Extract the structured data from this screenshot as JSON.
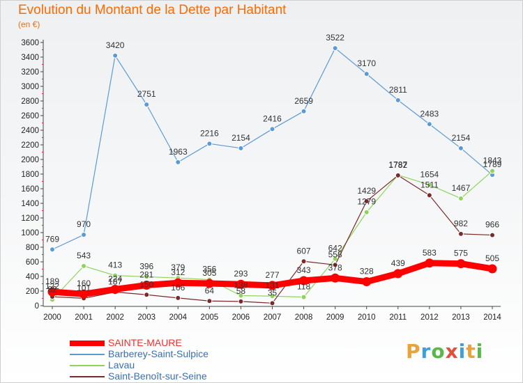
{
  "title": "Evolution du Montant de la Dette par Habitant",
  "unit_label": "(en €)",
  "logo": {
    "text": "Proxiti",
    "colors": [
      "#e8a33a",
      "#3fa0d8",
      "#58b848",
      "#e0503a",
      "#3fa0d8",
      "#e8a33a",
      "#58b848"
    ]
  },
  "chart_data": {
    "type": "line",
    "title": "Evolution du Montant de la Dette par Habitant",
    "ylabel": "(en €)",
    "xlabel": "",
    "x": [
      "2000",
      "2001",
      "2002",
      "2003",
      "2004",
      "2005",
      "2006",
      "2007",
      "2008",
      "2009",
      "2010",
      "2011",
      "2012",
      "2013",
      "2014"
    ],
    "ylim": [
      0,
      3600
    ],
    "yticks": [
      0,
      200,
      400,
      600,
      800,
      1000,
      1200,
      1400,
      1600,
      1800,
      2000,
      2200,
      2400,
      2600,
      2800,
      3000,
      3200,
      3400,
      3600
    ],
    "grid": false,
    "legend_position": "bottom-left",
    "series": [
      {
        "name": "SAINTE-MAURE",
        "color": "#ff0000",
        "width": 9,
        "values": [
          189,
          160,
          224,
          281,
          312,
          305,
          293,
          277,
          343,
          378,
          328,
          439,
          583,
          575,
          505
        ],
        "labels": [
          "189",
          "160",
          "224",
          "281",
          "312",
          "305",
          "293",
          "277",
          "343",
          "378",
          "328",
          "439",
          "583",
          "575",
          "505"
        ]
      },
      {
        "name": "Barberey-Saint-Sulpice",
        "color": "#5b9bd5",
        "width": 1.2,
        "values": [
          769,
          970,
          3420,
          2751,
          1963,
          2216,
          2154,
          2416,
          2659,
          3522,
          3170,
          2811,
          2483,
          2154,
          1789
        ],
        "labels": [
          "769",
          "970",
          "3420",
          "2751",
          "1963",
          "2216",
          "2154",
          "2416",
          "2659",
          "3522",
          "3170",
          "2811",
          "2483",
          "2154",
          "1789"
        ]
      },
      {
        "name": "Lavau",
        "color": "#8fd45a",
        "width": 1.2,
        "values": [
          82,
          543,
          413,
          396,
          379,
          356,
          138,
          131,
          118,
          642,
          1279,
          1787,
          1654,
          1467,
          1843
        ],
        "labels": [
          "82",
          "543",
          "413",
          "396",
          "379",
          "356",
          "138",
          "131",
          "118",
          "642",
          "1279",
          "1787",
          "1654",
          "1467",
          "1843"
        ]
      },
      {
        "name": "Saint-Benoît-sur-Seine",
        "color": "#7a2a2a",
        "width": 1.2,
        "values": [
          122,
          101,
          187,
          150,
          106,
          64,
          58,
          35,
          607,
          558,
          1429,
          1782,
          1511,
          982,
          966
        ],
        "labels": [
          "122",
          "101",
          "187",
          "150",
          "106",
          "64",
          "58",
          "35",
          "607",
          "558",
          "1429",
          "1782",
          "1511",
          "982",
          "966"
        ]
      }
    ]
  }
}
